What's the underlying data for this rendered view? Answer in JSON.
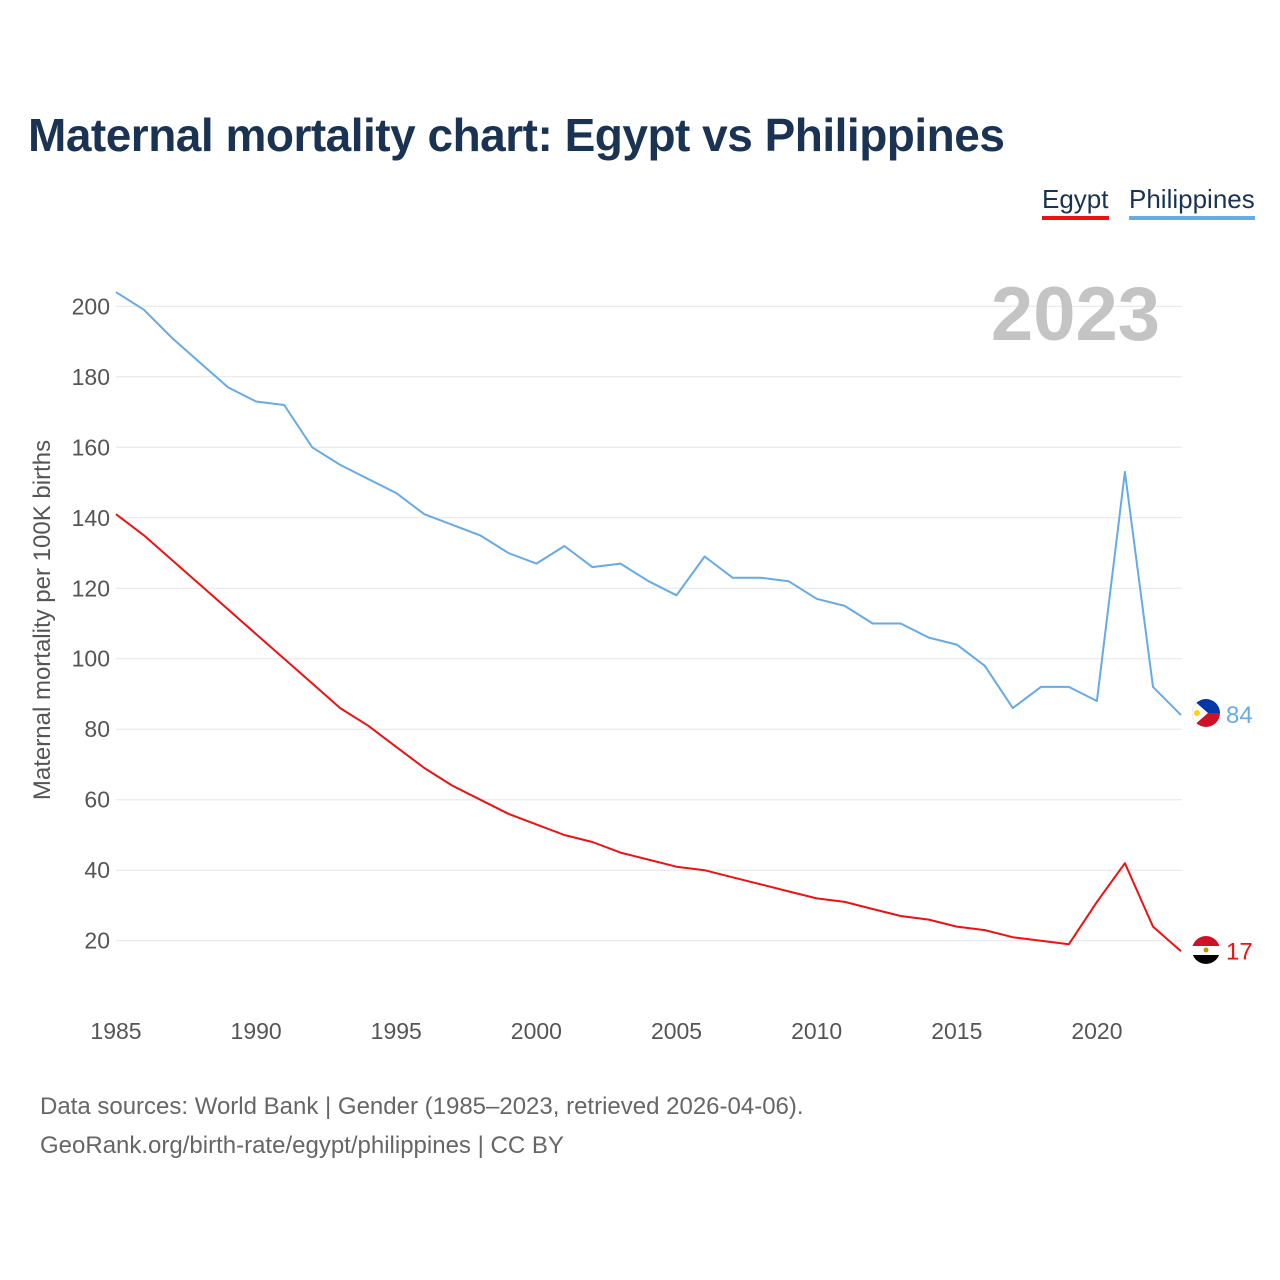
{
  "title": "Maternal mortality chart: Egypt vs Philippines",
  "legend": [
    {
      "name": "Egypt",
      "color": "#ee1111"
    },
    {
      "name": "Philippines",
      "color": "#66aae6"
    }
  ],
  "footer": {
    "line1": "Data sources: World Bank | Gender (1985–2023, retrieved 2026-04-06).",
    "line2": "GeoRank.org/birth-rate/egypt/philippines | CC BY"
  },
  "chart_data": {
    "type": "line",
    "title": "Maternal mortality chart: Egypt vs Philippines",
    "xlabel": "",
    "ylabel": "Maternal mortality per 100K births",
    "year_label": "2023",
    "x": [
      1985,
      1986,
      1987,
      1988,
      1989,
      1990,
      1991,
      1992,
      1993,
      1994,
      1995,
      1996,
      1997,
      1998,
      1999,
      2000,
      2001,
      2002,
      2003,
      2004,
      2005,
      2006,
      2007,
      2008,
      2009,
      2010,
      2011,
      2012,
      2013,
      2014,
      2015,
      2016,
      2017,
      2018,
      2019,
      2020,
      2021,
      2022,
      2023
    ],
    "xlim": [
      1985,
      2023
    ],
    "ylim": [
      8,
      212
    ],
    "x_ticks": [
      1985,
      1990,
      1995,
      2000,
      2005,
      2010,
      2015,
      2020
    ],
    "y_ticks": [
      20,
      40,
      60,
      80,
      100,
      120,
      140,
      160,
      180,
      200
    ],
    "grid": true,
    "legend_position": "top-right",
    "series": [
      {
        "name": "Egypt",
        "color": "#ee1111",
        "end_label": "17",
        "values": [
          141,
          135,
          128,
          121,
          114,
          107,
          100,
          93,
          86,
          81,
          75,
          69,
          64,
          60,
          56,
          53,
          50,
          48,
          45,
          43,
          41,
          40,
          38,
          36,
          34,
          32,
          31,
          29,
          27,
          26,
          24,
          23,
          21,
          20,
          19,
          31,
          42,
          24,
          17
        ]
      },
      {
        "name": "Philippines",
        "color": "#66aae6",
        "end_label": "84",
        "values": [
          204,
          199,
          191,
          184,
          177,
          173,
          172,
          160,
          155,
          151,
          147,
          141,
          138,
          135,
          130,
          127,
          132,
          126,
          127,
          122,
          118,
          129,
          123,
          123,
          122,
          117,
          115,
          110,
          110,
          106,
          104,
          98,
          86,
          92,
          92,
          88,
          153,
          92,
          84
        ]
      }
    ]
  }
}
